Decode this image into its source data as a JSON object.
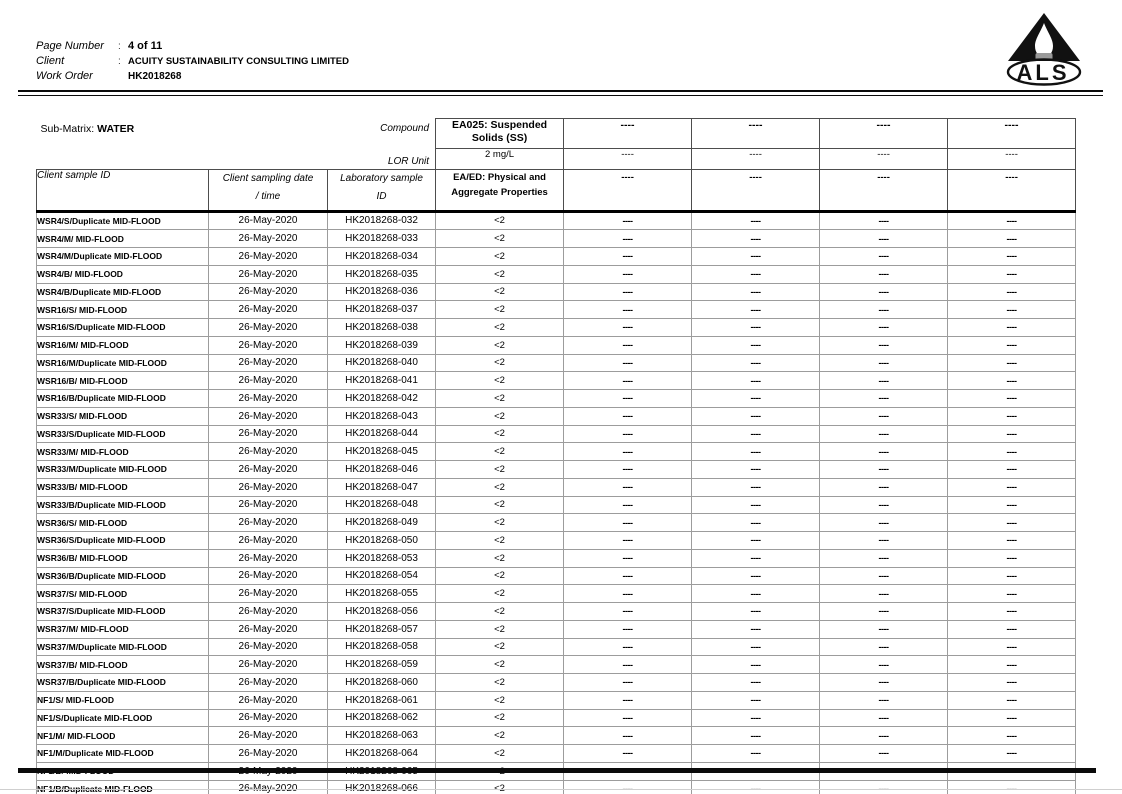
{
  "colors": {
    "text": "#000000",
    "grid_inner": "#9c9c9c",
    "grid_header": "#4d4d4d",
    "thick_rule": "#0a0a0a"
  },
  "page": {
    "fields": [
      {
        "label": "Page Number",
        "separator": ":",
        "value": "4 of 11"
      },
      {
        "label": "Client",
        "separator": ":",
        "value": "ACUITY SUSTAINABILITY CONSULTING LIMITED"
      },
      {
        "label": "Work Order",
        "separator": "",
        "value": "HK2018268"
      }
    ],
    "logo_text": "ALS"
  },
  "table": {
    "sub_matrix": {
      "label": "Sub-Matrix:",
      "value": "WATER"
    },
    "compound_label": "Compound",
    "lor_unit_label": "LOR Unit",
    "sample_columns": [
      {
        "label": "Client sample ID",
        "label2": ""
      },
      {
        "label": "Client sampling date",
        "label2": "/ time"
      },
      {
        "label": "Laboratory sample",
        "label2": "ID"
      }
    ],
    "analyte_columns": [
      {
        "compound": "EA025: Suspended Solids (SS)",
        "lor_unit": "2 mg/L",
        "method": "EA/ED: Physical and Aggregate Properties"
      },
      {
        "compound": "----",
        "lor_unit": "----",
        "method": "----"
      },
      {
        "compound": "----",
        "lor_unit": "----",
        "method": "----"
      },
      {
        "compound": "----",
        "lor_unit": "----",
        "method": "----"
      },
      {
        "compound": "----",
        "lor_unit": "----",
        "method": "----"
      }
    ],
    "rows": [
      {
        "sample_id": "WSR4/S/Duplicate MID-FLOOD",
        "date": "26-May-2020",
        "lab_id": "HK2018268-032",
        "results": [
          "<2",
          "----",
          "----",
          "----",
          "----"
        ]
      },
      {
        "sample_id": "WSR4/M/ MID-FLOOD",
        "date": "26-May-2020",
        "lab_id": "HK2018268-033",
        "results": [
          "<2",
          "----",
          "----",
          "----",
          "----"
        ]
      },
      {
        "sample_id": "WSR4/M/Duplicate MID-FLOOD",
        "date": "26-May-2020",
        "lab_id": "HK2018268-034",
        "results": [
          "<2",
          "----",
          "----",
          "----",
          "----"
        ]
      },
      {
        "sample_id": "WSR4/B/ MID-FLOOD",
        "date": "26-May-2020",
        "lab_id": "HK2018268-035",
        "results": [
          "<2",
          "----",
          "----",
          "----",
          "----"
        ]
      },
      {
        "sample_id": "WSR4/B/Duplicate MID-FLOOD",
        "date": "26-May-2020",
        "lab_id": "HK2018268-036",
        "results": [
          "<2",
          "----",
          "----",
          "----",
          "----"
        ]
      },
      {
        "sample_id": "WSR16/S/ MID-FLOOD",
        "date": "26-May-2020",
        "lab_id": "HK2018268-037",
        "results": [
          "<2",
          "----",
          "----",
          "----",
          "----"
        ]
      },
      {
        "sample_id": "WSR16/S/Duplicate MID-FLOOD",
        "date": "26-May-2020",
        "lab_id": "HK2018268-038",
        "results": [
          "<2",
          "----",
          "----",
          "----",
          "----"
        ]
      },
      {
        "sample_id": "WSR16/M/ MID-FLOOD",
        "date": "26-May-2020",
        "lab_id": "HK2018268-039",
        "results": [
          "<2",
          "----",
          "----",
          "----",
          "----"
        ]
      },
      {
        "sample_id": "WSR16/M/Duplicate MID-FLOOD",
        "date": "26-May-2020",
        "lab_id": "HK2018268-040",
        "results": [
          "<2",
          "----",
          "----",
          "----",
          "----"
        ]
      },
      {
        "sample_id": "WSR16/B/ MID-FLOOD",
        "date": "26-May-2020",
        "lab_id": "HK2018268-041",
        "results": [
          "<2",
          "----",
          "----",
          "----",
          "----"
        ]
      },
      {
        "sample_id": "WSR16/B/Duplicate MID-FLOOD",
        "date": "26-May-2020",
        "lab_id": "HK2018268-042",
        "results": [
          "<2",
          "----",
          "----",
          "----",
          "----"
        ]
      },
      {
        "sample_id": "WSR33/S/ MID-FLOOD",
        "date": "26-May-2020",
        "lab_id": "HK2018268-043",
        "results": [
          "<2",
          "----",
          "----",
          "----",
          "----"
        ]
      },
      {
        "sample_id": "WSR33/S/Duplicate MID-FLOOD",
        "date": "26-May-2020",
        "lab_id": "HK2018268-044",
        "results": [
          "<2",
          "----",
          "----",
          "----",
          "----"
        ]
      },
      {
        "sample_id": "WSR33/M/ MID-FLOOD",
        "date": "26-May-2020",
        "lab_id": "HK2018268-045",
        "results": [
          "<2",
          "----",
          "----",
          "----",
          "----"
        ]
      },
      {
        "sample_id": "WSR33/M/Duplicate MID-FLOOD",
        "date": "26-May-2020",
        "lab_id": "HK2018268-046",
        "results": [
          "<2",
          "----",
          "----",
          "----",
          "----"
        ]
      },
      {
        "sample_id": "WSR33/B/ MID-FLOOD",
        "date": "26-May-2020",
        "lab_id": "HK2018268-047",
        "results": [
          "<2",
          "----",
          "----",
          "----",
          "----"
        ]
      },
      {
        "sample_id": "WSR33/B/Duplicate MID-FLOOD",
        "date": "26-May-2020",
        "lab_id": "HK2018268-048",
        "results": [
          "<2",
          "----",
          "----",
          "----",
          "----"
        ]
      },
      {
        "sample_id": "WSR36/S/ MID-FLOOD",
        "date": "26-May-2020",
        "lab_id": "HK2018268-049",
        "results": [
          "<2",
          "----",
          "----",
          "----",
          "----"
        ]
      },
      {
        "sample_id": "WSR36/S/Duplicate MID-FLOOD",
        "date": "26-May-2020",
        "lab_id": "HK2018268-050",
        "results": [
          "<2",
          "----",
          "----",
          "----",
          "----"
        ]
      },
      {
        "sample_id": "WSR36/B/ MID-FLOOD",
        "date": "26-May-2020",
        "lab_id": "HK2018268-053",
        "results": [
          "<2",
          "----",
          "----",
          "----",
          "----"
        ]
      },
      {
        "sample_id": "WSR36/B/Duplicate MID-FLOOD",
        "date": "26-May-2020",
        "lab_id": "HK2018268-054",
        "results": [
          "<2",
          "----",
          "----",
          "----",
          "----"
        ]
      },
      {
        "sample_id": "WSR37/S/ MID-FLOOD",
        "date": "26-May-2020",
        "lab_id": "HK2018268-055",
        "results": [
          "<2",
          "----",
          "----",
          "----",
          "----"
        ]
      },
      {
        "sample_id": "WSR37/S/Duplicate MID-FLOOD",
        "date": "26-May-2020",
        "lab_id": "HK2018268-056",
        "results": [
          "<2",
          "----",
          "----",
          "----",
          "----"
        ]
      },
      {
        "sample_id": "WSR37/M/ MID-FLOOD",
        "date": "26-May-2020",
        "lab_id": "HK2018268-057",
        "results": [
          "<2",
          "----",
          "----",
          "----",
          "----"
        ]
      },
      {
        "sample_id": "WSR37/M/Duplicate MID-FLOOD",
        "date": "26-May-2020",
        "lab_id": "HK2018268-058",
        "results": [
          "<2",
          "----",
          "----",
          "----",
          "----"
        ]
      },
      {
        "sample_id": "WSR37/B/ MID-FLOOD",
        "date": "26-May-2020",
        "lab_id": "HK2018268-059",
        "results": [
          "<2",
          "----",
          "----",
          "----",
          "----"
        ]
      },
      {
        "sample_id": "WSR37/B/Duplicate MID-FLOOD",
        "date": "26-May-2020",
        "lab_id": "HK2018268-060",
        "results": [
          "<2",
          "----",
          "----",
          "----",
          "----"
        ]
      },
      {
        "sample_id": "NF1/S/ MID-FLOOD",
        "date": "26-May-2020",
        "lab_id": "HK2018268-061",
        "results": [
          "<2",
          "----",
          "----",
          "----",
          "----"
        ]
      },
      {
        "sample_id": "NF1/S/Duplicate MID-FLOOD",
        "date": "26-May-2020",
        "lab_id": "HK2018268-062",
        "results": [
          "<2",
          "----",
          "----",
          "----",
          "----"
        ]
      },
      {
        "sample_id": "NF1/M/ MID-FLOOD",
        "date": "26-May-2020",
        "lab_id": "HK2018268-063",
        "results": [
          "<2",
          "----",
          "----",
          "----",
          "----"
        ]
      },
      {
        "sample_id": "NF1/M/Duplicate MID-FLOOD",
        "date": "26-May-2020",
        "lab_id": "HK2018268-064",
        "results": [
          "<2",
          "----",
          "----",
          "----",
          "----"
        ]
      },
      {
        "sample_id": "NF1/B/ MID-FLOOD",
        "date": "26-May-2020",
        "lab_id": "HK2018268-065",
        "results": [
          "<2",
          "----",
          "----",
          "----",
          "----"
        ]
      },
      {
        "sample_id": "NF1/B/Duplicate MID-FLOOD",
        "date": "26-May-2020",
        "lab_id": "HK2018268-066",
        "results": [
          "<2",
          "----",
          "----",
          "----",
          "----"
        ]
      }
    ]
  }
}
